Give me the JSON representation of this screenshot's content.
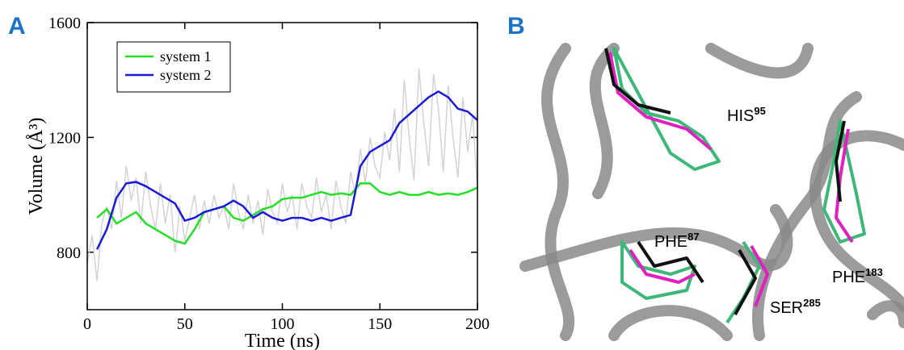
{
  "panel_labels": [
    "A",
    "B"
  ],
  "chart_data": {
    "type": "line",
    "xlabel": "Time (ns)",
    "ylabel": "Volume (Å³)",
    "xlim": [
      0,
      200
    ],
    "xticks": [
      0,
      50,
      100,
      150,
      200
    ],
    "ylim": [
      600,
      1600
    ],
    "yticks": [
      800,
      1200,
      1600
    ],
    "legend": "upper left",
    "x": [
      5,
      10,
      15,
      20,
      25,
      30,
      35,
      40,
      45,
      50,
      55,
      60,
      65,
      70,
      75,
      80,
      85,
      90,
      95,
      100,
      105,
      110,
      115,
      120,
      125,
      130,
      135,
      140,
      145,
      150,
      155,
      160,
      165,
      170,
      175,
      180,
      185,
      190,
      195,
      200
    ],
    "series": [
      {
        "color": "#d3d3d3",
        "x": [
          0,
          2.5,
          5,
          7.5,
          10,
          12.5,
          15,
          17.5,
          20,
          22.5,
          25,
          27.5,
          30,
          32.5,
          35,
          37.5,
          40,
          42.5,
          45,
          47.5,
          50,
          52.5,
          55,
          57.5,
          60,
          62.5,
          65,
          67.5,
          70,
          72.5,
          75,
          77.5,
          80,
          82.5,
          85,
          87.5,
          90,
          92.5,
          95,
          97.5,
          100,
          102.5,
          105,
          107.5,
          110,
          112.5,
          115,
          117.5,
          120,
          122.5,
          125,
          127.5,
          130,
          132.5,
          135,
          137.5,
          140,
          142.5,
          145,
          147.5,
          150,
          152.5,
          155,
          157.5,
          160,
          162.5,
          165,
          167.5,
          170,
          172.5,
          175,
          177.5,
          180,
          182.5,
          185,
          187.5,
          190,
          192.5,
          195,
          197.5,
          200
        ],
        "values": [
          760,
          860,
          700,
          900,
          960,
          880,
          1050,
          920,
          1100,
          980,
          1060,
          900,
          1080,
          960,
          880,
          1040,
          900,
          1000,
          800,
          960,
          840,
          920,
          1000,
          880,
          980,
          900,
          1000,
          920,
          960,
          880,
          1040,
          940,
          880,
          1000,
          900,
          980,
          860,
          1020,
          940,
          900,
          1040,
          940,
          1000,
          880,
          1040,
          960,
          920,
          1060,
          940,
          1000,
          880,
          1050,
          960,
          900,
          1080,
          1000,
          1160,
          1040,
          1200,
          1100,
          1060,
          1220,
          1120,
          1300,
          1080,
          1400,
          1200,
          1050,
          1440,
          1250,
          1100,
          1420,
          1300,
          1080,
          1380,
          1200,
          1060,
          1340,
          1150,
          1280,
          1020
        ]
      },
      {
        "name": "system 1",
        "color": "#22e022",
        "values": [
          920,
          950,
          900,
          920,
          940,
          900,
          880,
          860,
          840,
          830,
          880,
          940,
          950,
          960,
          920,
          910,
          930,
          950,
          960,
          985,
          990,
          990,
          1000,
          1010,
          1000,
          1005,
          1000,
          1040,
          1040,
          1010,
          1000,
          1010,
          1000,
          1000,
          1010,
          1000,
          1005,
          1000,
          1010,
          1025
        ]
      },
      {
        "name": "system 2",
        "color": "#1a1adc",
        "values": [
          810,
          880,
          990,
          1040,
          1045,
          1030,
          1010,
          990,
          970,
          910,
          920,
          940,
          950,
          960,
          980,
          960,
          920,
          940,
          920,
          910,
          920,
          920,
          910,
          920,
          910,
          920,
          930,
          1100,
          1150,
          1170,
          1190,
          1250,
          1280,
          1310,
          1340,
          1360,
          1340,
          1300,
          1290,
          1260
        ]
      }
    ]
  },
  "image": {
    "labels": [
      {
        "name": "HIS",
        "number": "95"
      },
      {
        "name": "PHE",
        "number": "87"
      },
      {
        "name": "SER",
        "number": "285"
      },
      {
        "name": "PHE",
        "number": "183"
      }
    ]
  }
}
